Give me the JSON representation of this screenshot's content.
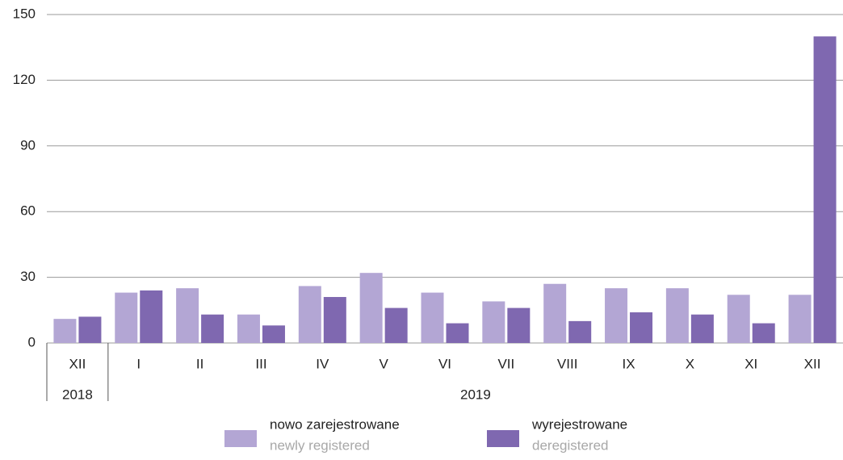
{
  "chart_data": {
    "type": "bar",
    "categories": [
      "XII",
      "I",
      "II",
      "III",
      "IV",
      "V",
      "VI",
      "VII",
      "VIII",
      "IX",
      "X",
      "XI",
      "XII"
    ],
    "years": [
      "2018",
      "2019",
      null,
      null,
      null,
      null,
      null,
      null,
      null,
      null,
      null,
      null,
      null
    ],
    "series": [
      {
        "name": "nowo zarejestrowane",
        "name_en": "newly registered",
        "color": "#b3a6d4",
        "values": [
          11,
          23,
          25,
          13,
          26,
          32,
          23,
          19,
          27,
          25,
          25,
          22,
          22
        ]
      },
      {
        "name": "wyrejestrowane",
        "name_en": "deregistered",
        "color": "#7f68b0",
        "values": [
          12,
          24,
          13,
          8,
          21,
          16,
          9,
          16,
          10,
          14,
          13,
          9,
          140
        ]
      }
    ],
    "ylim": [
      0,
      150
    ],
    "yticks": [
      0,
      30,
      60,
      90,
      120,
      150
    ],
    "grid": true,
    "legend": "bottom"
  }
}
